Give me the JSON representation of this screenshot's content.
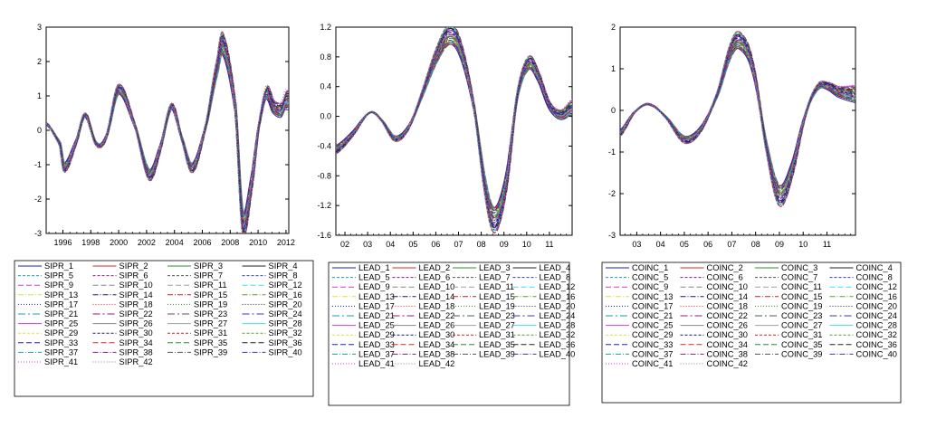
{
  "chart_data": [
    {
      "type": "line",
      "title": "",
      "xlabel": "",
      "ylabel": "",
      "x_ticks": [
        "1996",
        "1998",
        "2000",
        "2002",
        "2004",
        "2006",
        "2008",
        "2010",
        "2012"
      ],
      "y_ticks": [
        "3",
        "2",
        "1",
        "0",
        "-1",
        "-2",
        "-3"
      ],
      "xlim": [
        1994.8,
        2012.2
      ],
      "ylim": [
        -3,
        3
      ],
      "grid": false,
      "legend_position": "bottom",
      "series_prefix": "SIPR",
      "series_count": 42,
      "legend": [
        "SIPR_1",
        "SIPR_2",
        "SIPR_3",
        "SIPR_4",
        "SIPR_5",
        "SIPR_6",
        "SIPR_7",
        "SIPR_8",
        "SIPR_9",
        "SIPR_10",
        "SIPR_11",
        "SIPR_12",
        "SIPR_13",
        "SIPR_14",
        "SIPR_15",
        "SIPR_16",
        "SIPR_17",
        "SIPR_18",
        "SIPR_19",
        "SIPR_20",
        "SIPR_21",
        "SIPR_22",
        "SIPR_23",
        "SIPR_24",
        "SIPR_25",
        "SIPR_26",
        "SIPR_27",
        "SIPR_28",
        "SIPR_29",
        "SIPR_30",
        "SIPR_31",
        "SIPR_32",
        "SIPR_33",
        "SIPR_34",
        "SIPR_35",
        "SIPR_36",
        "SIPR_37",
        "SIPR_38",
        "SIPR_39",
        "SIPR_40",
        "SIPR_41",
        "SIPR_42"
      ],
      "x": [
        1994.8,
        1995.8,
        1996.1,
        1997.0,
        1997.6,
        1998.4,
        1999.1,
        2000.0,
        2001.2,
        2002.2,
        2003.0,
        2003.8,
        2004.5,
        2005.3,
        2006.3,
        2007.1,
        2007.5,
        2008.4,
        2008.9,
        2009.6,
        2010.0,
        2010.6,
        2011.1,
        2011.7,
        2012.0
      ],
      "y": [
        0.2,
        -0.4,
        -1.1,
        -0.3,
        0.45,
        -0.4,
        -0.2,
        1.2,
        0.1,
        -1.3,
        -0.5,
        0.7,
        -0.2,
        -1.1,
        0.2,
        1.9,
        2.5,
        0.6,
        -2.7,
        -1.4,
        0.0,
        1.1,
        0.7,
        0.6,
        0.9
      ]
    },
    {
      "type": "line",
      "title": "",
      "xlabel": "",
      "ylabel": "",
      "x_ticks": [
        "02",
        "03",
        "04",
        "05",
        "06",
        "07",
        "08",
        "09",
        "10",
        "11"
      ],
      "y_ticks": [
        "1.2",
        "0.8",
        "0.4",
        "0.0",
        "-0.4",
        "-0.8",
        "-1.2",
        "-1.6"
      ],
      "xlim": [
        2001.6,
        2012.0
      ],
      "ylim": [
        -1.6,
        1.2
      ],
      "grid": false,
      "legend_position": "bottom",
      "series_prefix": "LEAD",
      "series_count": 42,
      "legend": [
        "LEAD_1",
        "LEAD_2",
        "LEAD_3",
        "LEAD_4",
        "LEAD_5",
        "LEAD_6",
        "LEAD_7",
        "LEAD_8",
        "LEAD_9",
        "LEAD_10",
        "LEAD_11",
        "LEAD_12",
        "LEAD_13",
        "LEAD_14",
        "LEAD_15",
        "LEAD_16",
        "LEAD_17",
        "LEAD_18",
        "LEAD_19",
        "LEAD_20",
        "LEAD_21",
        "LEAD_22",
        "LEAD_23",
        "LEAD_24",
        "LEAD_25",
        "LEAD_26",
        "LEAD_27",
        "LEAD_28",
        "LEAD_29",
        "LEAD_30",
        "LEAD_31",
        "LEAD_32",
        "LEAD_33",
        "LEAD_34",
        "LEAD_35",
        "LEAD_36",
        "LEAD_37",
        "LEAD_38",
        "LEAD_39",
        "LEAD_40",
        "LEAD_41",
        "LEAD_42"
      ],
      "x": [
        2001.6,
        2002.3,
        2003.1,
        2003.6,
        2004.2,
        2004.8,
        2005.4,
        2006.0,
        2006.6,
        2007.1,
        2007.7,
        2008.2,
        2008.6,
        2009.1,
        2009.6,
        2010.1,
        2010.5,
        2011.0,
        2011.5,
        2012.0
      ],
      "y": [
        -0.45,
        -0.25,
        0.05,
        -0.05,
        -0.3,
        -0.15,
        0.3,
        0.8,
        1.1,
        0.9,
        0.1,
        -1.0,
        -1.4,
        -0.9,
        0.3,
        0.72,
        0.55,
        0.15,
        0.02,
        0.12
      ]
    },
    {
      "type": "line",
      "title": "",
      "xlabel": "",
      "ylabel": "",
      "x_ticks": [
        "03",
        "04",
        "05",
        "06",
        "07",
        "08",
        "09",
        "10",
        "11"
      ],
      "y_ticks": [
        "2",
        "1",
        "0",
        "-1",
        "-2",
        "-3"
      ],
      "xlim": [
        2002.3,
        2012.2
      ],
      "ylim": [
        -3,
        2
      ],
      "grid": false,
      "legend_position": "bottom",
      "series_prefix": "COINC",
      "series_count": 42,
      "legend": [
        "COINC_1",
        "COINC_2",
        "COINC_3",
        "COINC_4",
        "COINC_5",
        "COINC_6",
        "COINC_7",
        "COINC_8",
        "COINC_9",
        "COINC_10",
        "COINC_11",
        "COINC_12",
        "COINC_13",
        "COINC_14",
        "COINC_15",
        "COINC_16",
        "COINC_17",
        "COINC_18",
        "COINC_19",
        "COINC_20",
        "COINC_21",
        "COINC_22",
        "COINC_23",
        "COINC_24",
        "COINC_25",
        "COINC_26",
        "COINC_27",
        "COINC_28",
        "COINC_29",
        "COINC_30",
        "COINC_31",
        "COINC_32",
        "COINC_33",
        "COINC_34",
        "COINC_35",
        "COINC_36",
        "COINC_37",
        "COINC_38",
        "COINC_39",
        "COINC_40",
        "COINC_41",
        "COINC_42"
      ],
      "x": [
        2002.3,
        2002.9,
        2003.5,
        2004.2,
        2005.0,
        2005.7,
        2006.4,
        2007.0,
        2007.4,
        2007.9,
        2008.5,
        2009.0,
        2009.5,
        2010.1,
        2010.6,
        2011.0,
        2011.5,
        2012.2
      ],
      "y": [
        -0.55,
        -0.05,
        0.15,
        -0.15,
        -0.7,
        -0.45,
        0.4,
        1.5,
        1.65,
        1.0,
        -1.0,
        -2.05,
        -1.5,
        -0.1,
        0.55,
        0.6,
        0.45,
        0.4
      ]
    }
  ],
  "palette": [
    "#1f1fbf",
    "#d62828",
    "#2e8b2e",
    "#222222",
    "#1aa3a3",
    "#8b1a8b",
    "#555555",
    "#3a3ab0",
    "#d63ad6",
    "#888888",
    "#a0a0a0",
    "#40e0e0",
    "#e0e040",
    "#1a1a66",
    "#cc2222",
    "#5a9e2a"
  ]
}
